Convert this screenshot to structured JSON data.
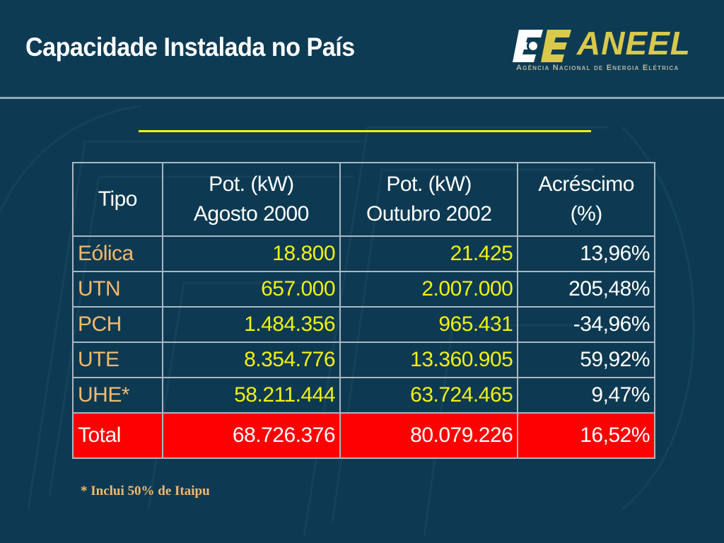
{
  "slide": {
    "title": "Capacidade Instalada no País",
    "footnote": "* Inclui 50% de Itaipu"
  },
  "logo": {
    "name": "ANEEL",
    "tagline": "Agência Nacional de Energia Elétrica"
  },
  "colors": {
    "background": "#0d3a52",
    "accent_yellow": "#f2f20c",
    "label_orange": "#f7b96b",
    "total_red": "#ff0000",
    "logo_gold": "#d9c94a"
  },
  "chart_data": {
    "type": "table",
    "columns": [
      {
        "lines": [
          "Tipo"
        ]
      },
      {
        "lines": [
          "Pot. (kW)",
          "Agosto 2000"
        ]
      },
      {
        "lines": [
          "Pot. (kW)",
          "Outubro 2002"
        ]
      },
      {
        "lines": [
          "Acréscimo",
          "(%)"
        ]
      }
    ],
    "rows": [
      {
        "tipo": "Eólica",
        "ago2000": "18.800",
        "out2002": "21.425",
        "acrescimo": "13,96%"
      },
      {
        "tipo": "UTN",
        "ago2000": "657.000",
        "out2002": "2.007.000",
        "acrescimo": "205,48%"
      },
      {
        "tipo": "PCH",
        "ago2000": "1.484.356",
        "out2002": "965.431",
        "acrescimo": "-34,96%"
      },
      {
        "tipo": "UTE",
        "ago2000": "8.354.776",
        "out2002": "13.360.905",
        "acrescimo": "59,92%"
      },
      {
        "tipo": "UHE*",
        "ago2000": "58.211.444",
        "out2002": "63.724.465",
        "acrescimo": "9,47%"
      }
    ],
    "total": {
      "tipo": "Total",
      "ago2000": "68.726.376",
      "out2002": "80.079.226",
      "acrescimo": "16,52%"
    }
  }
}
